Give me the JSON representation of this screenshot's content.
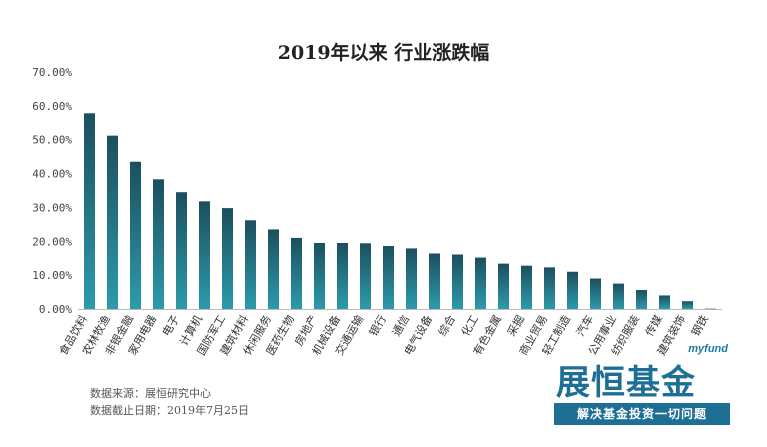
{
  "chart_data": {
    "type": "bar",
    "title": "2019年以来 行业涨跌幅",
    "categories": [
      "食品饮料",
      "农林牧渔",
      "非银金融",
      "家用电器",
      "电子",
      "计算机",
      "国防军工",
      "建筑材料",
      "休闲服务",
      "医药生物",
      "房地产",
      "机械设备",
      "交通运输",
      "银行",
      "通信",
      "电气设备",
      "综合",
      "化工",
      "有色金属",
      "采掘",
      "商业贸易",
      "轻工制造",
      "汽车",
      "公用事业",
      "纺织服装",
      "传媒",
      "建筑装饰",
      "钢铁"
    ],
    "values": [
      57.8,
      51.2,
      43.5,
      38.3,
      34.5,
      31.8,
      29.8,
      26.2,
      23.5,
      21.0,
      19.5,
      19.5,
      19.4,
      18.6,
      17.9,
      16.4,
      16.1,
      15.2,
      13.4,
      12.8,
      12.3,
      11.0,
      9.0,
      7.5,
      5.6,
      4.0,
      2.3,
      0.1
    ],
    "y_ticks": [
      "0.00%",
      "10.00%",
      "20.00%",
      "30.00%",
      "40.00%",
      "50.00%",
      "60.00%",
      "70.00%"
    ],
    "ylim": [
      0,
      70
    ],
    "grid": false,
    "colors": {
      "bar_top": "#1c4f5e",
      "bar_bottom": "#2c9bab"
    }
  },
  "notes": {
    "source": "数据来源：展恒研究中心",
    "date": "数据截止日期：2019年7月25日"
  },
  "logo": {
    "en": "myfund",
    "cn": "展恒基金",
    "slogan": "解决基金投资一切问题"
  }
}
